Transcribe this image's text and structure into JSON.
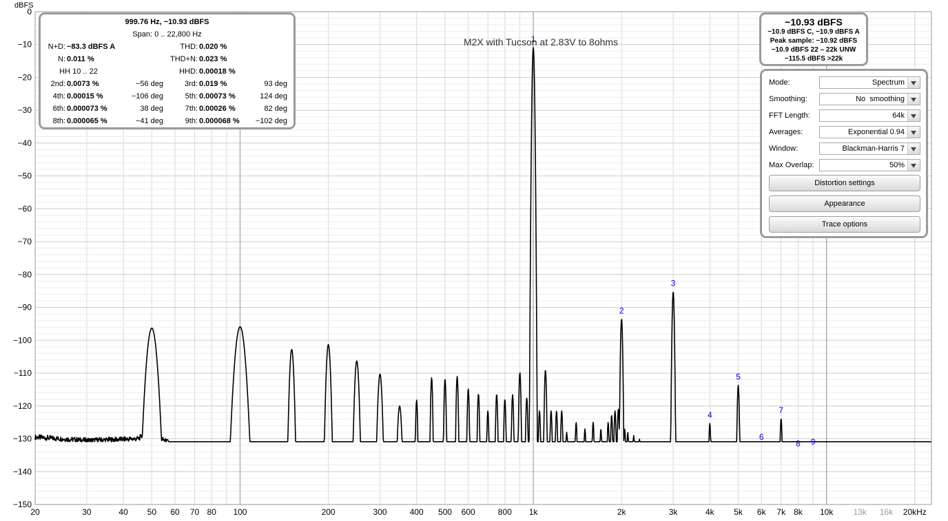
{
  "chart_data": {
    "type": "line",
    "title": "M2X with Tucson at 2.83V to 8ohms",
    "ylabel": "dBFS",
    "xscale": "log",
    "xlim": [
      20,
      22800
    ],
    "ylim": [
      -150,
      0
    ],
    "grid": true,
    "y_ticks": [
      0,
      -10,
      -20,
      -30,
      -40,
      -50,
      -60,
      -70,
      -80,
      -90,
      -100,
      -110,
      -120,
      -130,
      -140,
      -150
    ],
    "x_ticks": [
      {
        "v": 20,
        "t": "20"
      },
      {
        "v": 30,
        "t": "30"
      },
      {
        "v": 40,
        "t": "40"
      },
      {
        "v": 50,
        "t": "50"
      },
      {
        "v": 60,
        "t": "60"
      },
      {
        "v": 70,
        "t": "70"
      },
      {
        "v": 80,
        "t": "80"
      },
      {
        "v": 100,
        "t": "100"
      },
      {
        "v": 200,
        "t": "200"
      },
      {
        "v": 300,
        "t": "300"
      },
      {
        "v": 400,
        "t": "400"
      },
      {
        "v": 500,
        "t": "500"
      },
      {
        "v": 600,
        "t": "600"
      },
      {
        "v": 800,
        "t": "800"
      },
      {
        "v": 1000,
        "t": "1k"
      },
      {
        "v": 2000,
        "t": "2k"
      },
      {
        "v": 3000,
        "t": "3k"
      },
      {
        "v": 4000,
        "t": "4k"
      },
      {
        "v": 5000,
        "t": "5k"
      },
      {
        "v": 6000,
        "t": "6k"
      },
      {
        "v": 7000,
        "t": "7k"
      },
      {
        "v": 8000,
        "t": "8k"
      },
      {
        "v": 10000,
        "t": "10k"
      },
      {
        "v": 13000,
        "t": "13k",
        "grey": true
      },
      {
        "v": 16000,
        "t": "16k",
        "grey": true
      },
      {
        "v": 20000,
        "t": "20kHz"
      }
    ],
    "harmonic_markers": [
      {
        "label": "1",
        "x": 1000,
        "y": -10.9
      },
      {
        "label": "2",
        "x": 2000,
        "y": -93.5
      },
      {
        "label": "3",
        "x": 3000,
        "y": -85.2
      },
      {
        "label": "4",
        "x": 4000,
        "y": -125.3
      },
      {
        "label": "5",
        "x": 5000,
        "y": -113.7
      },
      {
        "label": "6",
        "x": 6000,
        "y": -132
      },
      {
        "label": "7",
        "x": 7000,
        "y": -123.8
      },
      {
        "label": "8",
        "x": 8000,
        "y": -134
      },
      {
        "label": "9",
        "x": 9000,
        "y": -133.5
      }
    ],
    "spurs": [
      [
        50,
        -96.3
      ],
      [
        100,
        -95.9
      ],
      [
        150,
        -102.8
      ],
      [
        200,
        -101.3
      ],
      [
        250,
        -106.3
      ],
      [
        300,
        -110.3
      ],
      [
        350,
        -120
      ],
      [
        400,
        -118.2
      ],
      [
        450,
        -111.4
      ],
      [
        500,
        -111.8
      ],
      [
        550,
        -111
      ],
      [
        600,
        -114.8
      ],
      [
        650,
        -116.3
      ],
      [
        700,
        -121.5
      ],
      [
        750,
        -116.4
      ],
      [
        800,
        -118
      ],
      [
        850,
        -116.6
      ],
      [
        900,
        -109.8
      ],
      [
        950,
        -117.5
      ],
      [
        1050,
        -121.5
      ],
      [
        1100,
        -109
      ],
      [
        1150,
        -121.5
      ],
      [
        1200,
        -121.5
      ],
      [
        1250,
        -121.5
      ],
      [
        1300,
        -128
      ],
      [
        1400,
        -125
      ],
      [
        1500,
        -127
      ],
      [
        1600,
        -125
      ],
      [
        1700,
        -127
      ],
      [
        1800,
        -125
      ],
      [
        1850,
        -122.8
      ],
      [
        1900,
        -121.5
      ],
      [
        1950,
        -121
      ],
      [
        2050,
        -127
      ],
      [
        2100,
        -128
      ],
      [
        2200,
        -129
      ],
      [
        2300,
        -130
      ]
    ],
    "floor": [
      [
        20,
        -129.5
      ],
      [
        30,
        -130.5
      ],
      [
        45,
        -130
      ],
      [
        48,
        -128
      ],
      [
        60,
        -132
      ],
      [
        90,
        -132.5
      ],
      [
        200,
        -134.5
      ],
      [
        400,
        -134.5
      ],
      [
        800,
        -134
      ],
      [
        1000,
        -133.5
      ],
      [
        3000,
        -134.5
      ],
      [
        8000,
        -134.5
      ],
      [
        12000,
        -135
      ],
      [
        16000,
        -136.5
      ],
      [
        20000,
        -139
      ],
      [
        22800,
        -141
      ]
    ]
  },
  "stats": {
    "header1": "999.76 Hz, −10.93 dBFS",
    "header2": "Span: 0 .. 22,800 Hz",
    "rows": [
      [
        "N+D:",
        "−83.3 dBFS A",
        "",
        "THD:",
        "0.020 %",
        ""
      ],
      [
        "N:",
        "0.011 %",
        "",
        "THD+N:",
        "0.023 %",
        ""
      ],
      [
        "HH 10 .. 22",
        "",
        "",
        "HHD:",
        "0.00018 %",
        ""
      ],
      [
        "2nd:",
        "0.0073 %",
        "−56 deg",
        "3rd:",
        "0.019 %",
        "93 deg"
      ],
      [
        "4th:",
        "0.00015 %",
        "−106 deg",
        "5th:",
        "0.00073 %",
        "124 deg"
      ],
      [
        "6th:",
        "0.000073 %",
        "38 deg",
        "7th:",
        "0.00026 %",
        "82 deg"
      ],
      [
        "8th:",
        "0.000065 %",
        "−41 deg",
        "9th:",
        "0.000068 %",
        "−102 deg"
      ]
    ]
  },
  "level": {
    "main": "−10.93 dBFS",
    "line1": "−10.9 dBFS C, −10.9 dBFS A",
    "line2": "Peak sample: −10.92 dBFS",
    "line3": "−10.9 dBFS 22 – 22k UNW",
    "line4": "−115.5 dBFS >22k"
  },
  "controls": {
    "mode": {
      "label": "Mode:",
      "value": "Spectrum"
    },
    "smoothing": {
      "label": "Smoothing:",
      "value": "No  smoothing"
    },
    "fft": {
      "label": "FFT Length:",
      "value": "64k"
    },
    "averages": {
      "label": "Averages:",
      "value": "Exponential 0.94"
    },
    "window": {
      "label": "Window:",
      "value": "Blackman-Harris 7"
    },
    "overlap": {
      "label": "Max Overlap:",
      "value": "50%"
    },
    "distortion_btn": "Distortion settings",
    "appearance_btn": "Appearance",
    "trace_btn": "Trace options"
  },
  "colors": {
    "trace": "#000000",
    "marker": "#0000cc",
    "grid": "#d8d8d8",
    "accent_grid": "#a0a0a0"
  }
}
